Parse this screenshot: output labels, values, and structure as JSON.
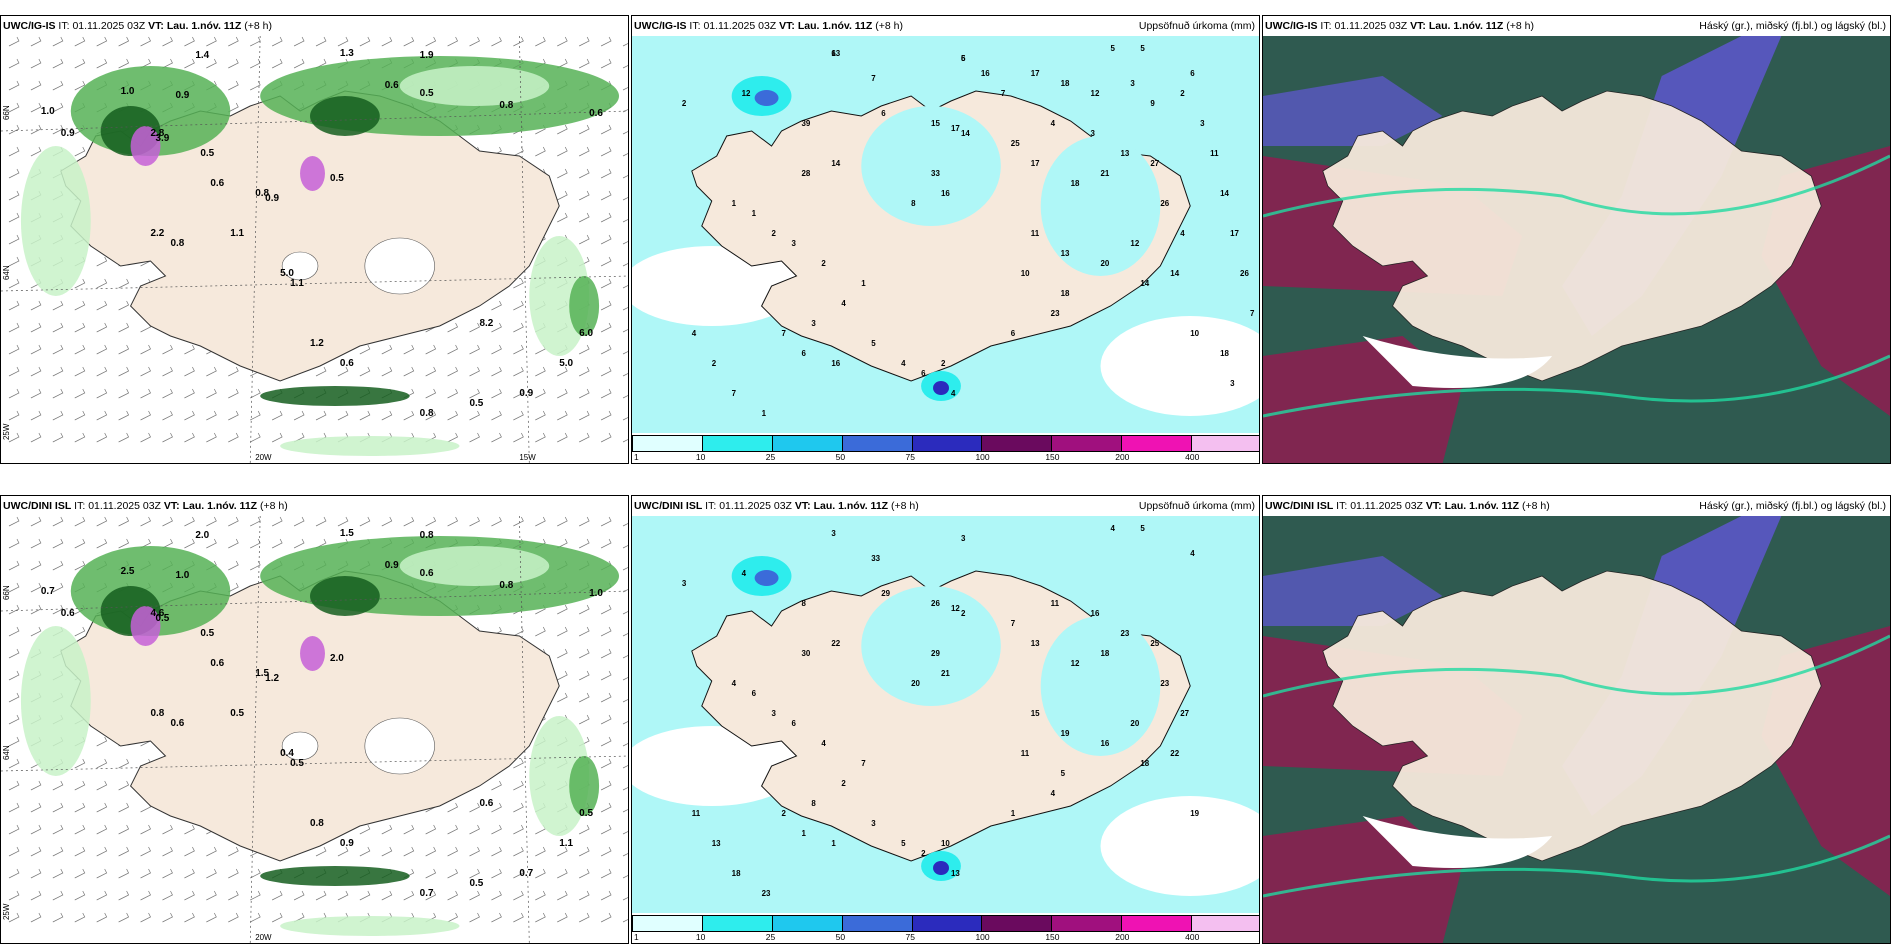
{
  "panels": [
    {
      "id": "p1",
      "model": "UWC/IG-IS",
      "it_label": "IT:",
      "it": "01.11.2025 03Z",
      "vt_label": "VT:",
      "vt": "Lau. 1.nóv. 11Z",
      "lead": "(+8 h)",
      "right_title": "",
      "lon_labels": [
        "20W",
        "15W"
      ],
      "lat_labels": [
        "66N",
        "64N",
        "25W"
      ],
      "values": [
        "1.4",
        "1.3",
        "1.9",
        "0.6",
        "1.0",
        "0.9",
        "2.8",
        "3.9",
        "0.5",
        "0.8",
        "0.6",
        "1.0",
        "0.9",
        "0.5",
        "0.6",
        "0.8",
        "0.9",
        "0.5",
        "2.2",
        "0.8",
        "1.1",
        "5.0",
        "1.1",
        "1.2",
        "0.6",
        "0.8",
        "0.5",
        "0.9",
        "5.0",
        "6.0",
        "8.2"
      ]
    },
    {
      "id": "p2",
      "model": "UWC/IG-IS",
      "it_label": "IT:",
      "it": "01.11.2025 03Z",
      "vt_label": "VT:",
      "vt": "Lau. 1.nóv. 11Z",
      "lead": "(+8 h)",
      "right_title": "Uppsöfnuð úrkoma (mm)",
      "values": [
        "6",
        "5",
        "5",
        "5",
        "6",
        "2",
        "12",
        "39",
        "7",
        "6",
        "15",
        "17",
        "14",
        "25",
        "4",
        "3",
        "28",
        "14",
        "33",
        "16",
        "8",
        "17",
        "18",
        "21",
        "13",
        "27",
        "26",
        "4",
        "14",
        "12",
        "14",
        "20",
        "13",
        "11",
        "10",
        "23",
        "18",
        "6",
        "1",
        "1",
        "2",
        "3",
        "2",
        "1",
        "4",
        "3",
        "7",
        "6",
        "16",
        "5",
        "4",
        "6",
        "2",
        "4",
        "4",
        "2",
        "7",
        "1",
        "10",
        "18",
        "3",
        "7",
        "26",
        "17",
        "14",
        "11",
        "3",
        "2",
        "9",
        "3",
        "12",
        "18",
        "17",
        "7",
        "16",
        "13",
        "6"
      ],
      "colorbar": {
        "labels": [
          "1",
          "10",
          "25",
          "50",
          "75",
          "100",
          "150",
          "200",
          "400"
        ],
        "colors": [
          "#e0ffff",
          "#2eeded",
          "#1fc8ee",
          "#3b6bd9",
          "#2b2bbd",
          "#6a0a5e",
          "#a0107e",
          "#ef12b3",
          "#f4bff0"
        ]
      }
    },
    {
      "id": "p3",
      "model": "UWC/IG-IS",
      "it_label": "IT:",
      "it": "01.11.2025 03Z",
      "vt_label": "VT:",
      "vt": "Lau. 1.nóv. 11Z",
      "lead": "(+8 h)",
      "right_title": "Háský (gr.), miðský (fj.bl.) og lágský (bl.)"
    },
    {
      "id": "p4",
      "model": "UWC/DINI ISL",
      "it_label": "IT:",
      "it": "01.11.2025 03Z",
      "vt_label": "VT:",
      "vt": "Lau. 1.nóv. 11Z",
      "lead": "(+8 h)",
      "right_title": "",
      "lon_labels": [
        "20W"
      ],
      "lat_labels": [
        "66N",
        "64N",
        "25W"
      ],
      "values": [
        "2.0",
        "1.5",
        "0.8",
        "0.9",
        "2.5",
        "1.0",
        "4.6",
        "0.5",
        "0.6",
        "0.8",
        "1.0",
        "0.7",
        "0.6",
        "0.5",
        "0.6",
        "1.5",
        "1.2",
        "2.0",
        "0.8",
        "0.6",
        "0.5",
        "0.4",
        "0.5",
        "0.8",
        "0.9",
        "0.7",
        "0.5",
        "0.7",
        "1.1",
        "0.5",
        "0.6"
      ]
    },
    {
      "id": "p5",
      "model": "UWC/DINI ISL",
      "it_label": "IT:",
      "it": "01.11.2025 03Z",
      "vt_label": "VT:",
      "vt": "Lau. 1.nóv. 11Z",
      "lead": "(+8 h)",
      "right_title": "Uppsöfnuð úrkoma (mm)",
      "values": [
        "3",
        "3",
        "4",
        "5",
        "4",
        "3",
        "4",
        "8",
        "33",
        "29",
        "26",
        "12",
        "2",
        "7",
        "11",
        "16",
        "30",
        "22",
        "29",
        "21",
        "20",
        "13",
        "12",
        "18",
        "23",
        "25",
        "23",
        "27",
        "22",
        "20",
        "18",
        "16",
        "19",
        "15",
        "11",
        "4",
        "5",
        "1",
        "4",
        "6",
        "3",
        "6",
        "4",
        "7",
        "2",
        "8",
        "2",
        "1",
        "1",
        "3",
        "5",
        "2",
        "10",
        "13",
        "11",
        "13",
        "18",
        "23",
        "19"
      ],
      "colorbar": {
        "labels": [
          "1",
          "10",
          "25",
          "50",
          "75",
          "100",
          "150",
          "200",
          "400"
        ],
        "colors": [
          "#e0ffff",
          "#2eeded",
          "#1fc8ee",
          "#3b6bd9",
          "#2b2bbd",
          "#6a0a5e",
          "#a0107e",
          "#ef12b3",
          "#f4bff0"
        ]
      }
    },
    {
      "id": "p6",
      "model": "UWC/DINI ISL",
      "it_label": "IT:",
      "it": "01.11.2025 03Z",
      "vt_label": "VT:",
      "vt": "Lau. 1.nóv. 11Z",
      "lead": "(+8 h)",
      "right_title": "Háský (gr.), miðský (fj.bl.) og lágský (bl.)"
    }
  ],
  "colors": {
    "land": "#f6e9dc",
    "sea_precip": "#aff7f7",
    "precip_light": "#c8f2c8",
    "precip_green": "#56b156",
    "precip_dark": "#155e1e",
    "precip_magenta": "#c660d7",
    "cloud_high": "#2f5a50",
    "cloud_mid": "#5b57c6",
    "cloud_low": "#8a2050",
    "cloud_edge": "#21d9a0"
  }
}
